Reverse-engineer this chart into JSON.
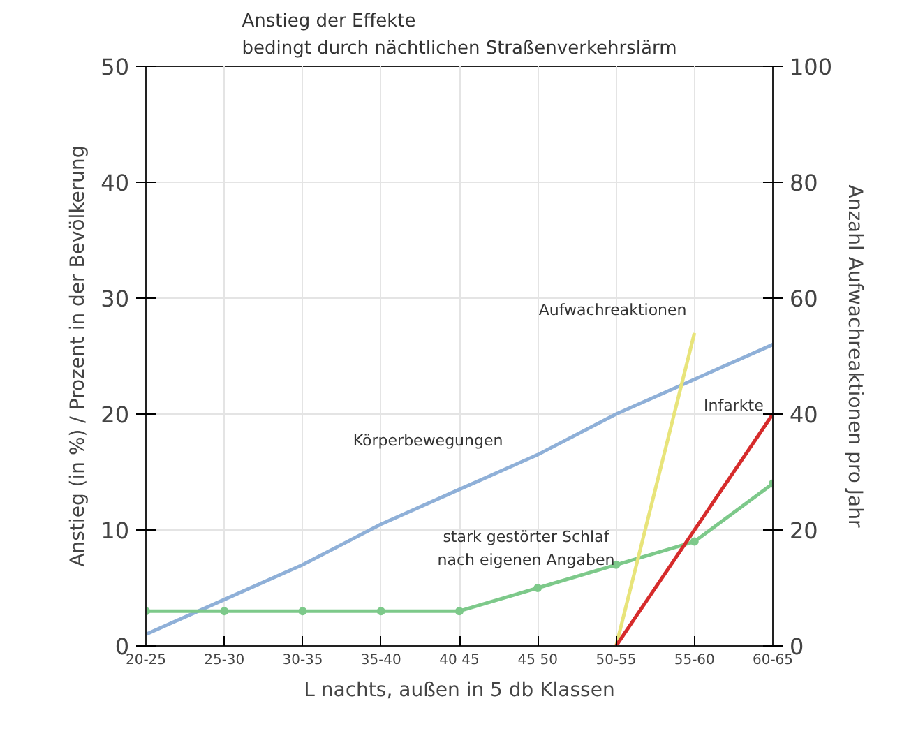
{
  "chart_data": {
    "type": "line",
    "title": "Anstieg der Effekte\nbedingt durch nächtlichen Straßenverkehrslärm",
    "xlabel": "L nachts, außen in 5 db Klassen",
    "ylabel": "Anstieg (in %) / Prozent in der Bevölkerung",
    "y2label": "Anzahl Aufwachreaktionen pro Jahr",
    "categories": [
      "20-25",
      "25-30",
      "30-35",
      "35-40",
      "40 45",
      "45 50",
      "50-55",
      "55-60",
      "60-65"
    ],
    "ylim": [
      0,
      50
    ],
    "yticks": [
      0,
      10,
      20,
      30,
      40,
      50
    ],
    "y2lim": [
      0,
      100
    ],
    "y2ticks": [
      0,
      20,
      40,
      60,
      80,
      100
    ],
    "grid": true,
    "marker": "none",
    "line_style": "solid",
    "series": [
      {
        "name": "Körperbewegungen",
        "color": "#8fb0d8",
        "values": [
          1,
          4,
          7,
          10.5,
          13.5,
          16.5,
          20,
          23,
          26
        ]
      },
      {
        "name": "stark gestörter Schlaf\nnach eigenen Angaben",
        "color": "#7dc98a",
        "marker": "circle",
        "values": [
          3,
          3,
          3,
          3,
          3,
          5,
          7,
          9,
          14
        ]
      },
      {
        "name": "Aufwachreaktionen",
        "color": "#e8e47a",
        "axis": "y2",
        "values": [
          null,
          null,
          null,
          null,
          null,
          null,
          0,
          54,
          null
        ]
      },
      {
        "name": "Infarkte",
        "color": "#d62b2b",
        "values": [
          null,
          null,
          null,
          null,
          null,
          null,
          0,
          10,
          20
        ]
      }
    ]
  }
}
